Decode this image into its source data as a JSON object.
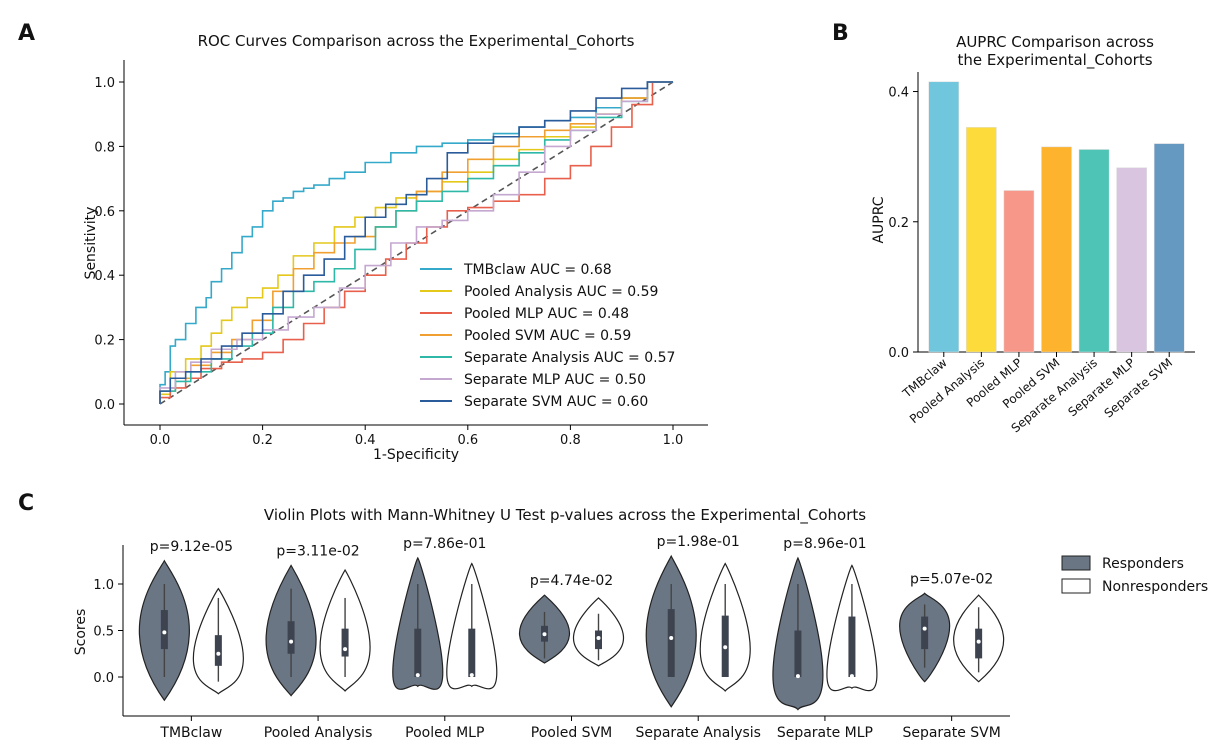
{
  "panels": {
    "a": "A",
    "b": "B",
    "c": "C"
  },
  "chart_data": [
    {
      "type": "line",
      "title": "ROC Curves Comparison across the Experimental_Cohorts",
      "xlabel": "1-Specificity",
      "ylabel": "Sensitivity",
      "xlim": [
        0,
        1
      ],
      "ylim": [
        0,
        1
      ],
      "xticks": [
        "0.0",
        "0.2",
        "0.4",
        "0.6",
        "0.8",
        "1.0"
      ],
      "yticks": [
        "0.0",
        "0.2",
        "0.4",
        "0.6",
        "0.8",
        "1.0"
      ],
      "legend_position": "lower-right",
      "diagonal": true,
      "series": [
        {
          "name": "TMBclaw AUC = 0.68",
          "color": "#35A9C9",
          "x": [
            0,
            0.01,
            0.02,
            0.03,
            0.05,
            0.07,
            0.09,
            0.1,
            0.12,
            0.14,
            0.16,
            0.18,
            0.2,
            0.22,
            0.24,
            0.26,
            0.28,
            0.3,
            0.33,
            0.36,
            0.4,
            0.45,
            0.5,
            0.55,
            0.6,
            0.65,
            0.7,
            0.75,
            0.8,
            0.85,
            0.9,
            0.95,
            1.0
          ],
          "y": [
            0,
            0.06,
            0.1,
            0.18,
            0.2,
            0.25,
            0.3,
            0.33,
            0.38,
            0.42,
            0.47,
            0.52,
            0.55,
            0.6,
            0.63,
            0.64,
            0.66,
            0.67,
            0.68,
            0.7,
            0.72,
            0.75,
            0.78,
            0.8,
            0.81,
            0.82,
            0.84,
            0.86,
            0.88,
            0.89,
            0.92,
            0.95,
            1.0
          ]
        },
        {
          "name": "Pooled Analysis AUC = 0.59",
          "color": "#E4C81A",
          "x": [
            0,
            0.02,
            0.05,
            0.08,
            0.1,
            0.12,
            0.14,
            0.17,
            0.2,
            0.23,
            0.26,
            0.3,
            0.34,
            0.38,
            0.42,
            0.46,
            0.5,
            0.55,
            0.6,
            0.65,
            0.7,
            0.75,
            0.8,
            0.85,
            0.9,
            0.95,
            1.0
          ],
          "y": [
            0,
            0.03,
            0.1,
            0.14,
            0.18,
            0.22,
            0.26,
            0.3,
            0.33,
            0.36,
            0.4,
            0.46,
            0.5,
            0.55,
            0.58,
            0.61,
            0.64,
            0.66,
            0.69,
            0.72,
            0.76,
            0.79,
            0.83,
            0.86,
            0.9,
            0.95,
            1.0
          ]
        },
        {
          "name": "Pooled MLP AUC = 0.48",
          "color": "#E8604C",
          "x": [
            0,
            0.02,
            0.05,
            0.08,
            0.12,
            0.16,
            0.2,
            0.24,
            0.28,
            0.32,
            0.36,
            0.4,
            0.44,
            0.48,
            0.52,
            0.56,
            0.6,
            0.65,
            0.7,
            0.75,
            0.8,
            0.84,
            0.88,
            0.92,
            0.96,
            1.0
          ],
          "y": [
            0,
            0.02,
            0.05,
            0.08,
            0.11,
            0.13,
            0.14,
            0.16,
            0.2,
            0.25,
            0.3,
            0.35,
            0.4,
            0.45,
            0.5,
            0.55,
            0.6,
            0.61,
            0.63,
            0.65,
            0.7,
            0.74,
            0.8,
            0.86,
            0.93,
            1.0
          ]
        },
        {
          "name": "Pooled SVM AUC = 0.59",
          "color": "#F0A030",
          "x": [
            0,
            0.03,
            0.06,
            0.1,
            0.14,
            0.18,
            0.22,
            0.26,
            0.3,
            0.34,
            0.38,
            0.42,
            0.46,
            0.5,
            0.55,
            0.6,
            0.65,
            0.7,
            0.75,
            0.8,
            0.85,
            0.9,
            0.95,
            1.0
          ],
          "y": [
            0,
            0.04,
            0.08,
            0.12,
            0.16,
            0.2,
            0.26,
            0.35,
            0.42,
            0.47,
            0.5,
            0.52,
            0.55,
            0.6,
            0.66,
            0.72,
            0.76,
            0.8,
            0.83,
            0.85,
            0.87,
            0.9,
            0.95,
            1.0
          ]
        },
        {
          "name": "Separate Analysis AUC = 0.57",
          "color": "#2EB8A8",
          "x": [
            0,
            0.03,
            0.06,
            0.1,
            0.14,
            0.18,
            0.22,
            0.26,
            0.3,
            0.34,
            0.38,
            0.42,
            0.46,
            0.5,
            0.55,
            0.6,
            0.65,
            0.7,
            0.75,
            0.8,
            0.85,
            0.9,
            0.95,
            1.0
          ],
          "y": [
            0,
            0.04,
            0.07,
            0.1,
            0.14,
            0.18,
            0.22,
            0.3,
            0.35,
            0.38,
            0.42,
            0.48,
            0.55,
            0.6,
            0.63,
            0.66,
            0.7,
            0.74,
            0.78,
            0.82,
            0.85,
            0.89,
            0.94,
            1.0
          ]
        },
        {
          "name": "Separate MLP AUC = 0.50",
          "color": "#C4A8D0",
          "x": [
            0,
            0.03,
            0.06,
            0.1,
            0.15,
            0.2,
            0.25,
            0.3,
            0.35,
            0.4,
            0.45,
            0.5,
            0.55,
            0.6,
            0.65,
            0.7,
            0.75,
            0.8,
            0.85,
            0.9,
            0.95,
            1.0
          ],
          "y": [
            0,
            0.05,
            0.1,
            0.13,
            0.17,
            0.2,
            0.23,
            0.27,
            0.3,
            0.36,
            0.43,
            0.5,
            0.55,
            0.57,
            0.6,
            0.65,
            0.72,
            0.8,
            0.85,
            0.9,
            0.94,
            1.0
          ]
        },
        {
          "name": "Separate SVM AUC = 0.60",
          "color": "#2A5B9A",
          "x": [
            0,
            0.02,
            0.05,
            0.08,
            0.12,
            0.16,
            0.2,
            0.24,
            0.28,
            0.32,
            0.36,
            0.4,
            0.44,
            0.48,
            0.52,
            0.56,
            0.6,
            0.65,
            0.7,
            0.75,
            0.8,
            0.85,
            0.9,
            0.95,
            1.0
          ],
          "y": [
            0,
            0.04,
            0.08,
            0.1,
            0.14,
            0.18,
            0.22,
            0.28,
            0.35,
            0.4,
            0.45,
            0.52,
            0.58,
            0.62,
            0.65,
            0.7,
            0.78,
            0.81,
            0.83,
            0.86,
            0.88,
            0.91,
            0.95,
            0.98,
            1.0
          ]
        }
      ]
    },
    {
      "type": "bar",
      "title": [
        "AUPRC Comparison across",
        "the Experimental_Cohorts"
      ],
      "ylabel": "AUPRC",
      "ylim": [
        0,
        0.43
      ],
      "yticks": [
        "0.0",
        "0.2",
        "0.4"
      ],
      "categories": [
        "TMBclaw",
        "Pooled Analysis",
        "Pooled MLP",
        "Pooled SVM",
        "Separate Analysis",
        "Separate MLP",
        "Separate SVM"
      ],
      "values": [
        0.415,
        0.345,
        0.248,
        0.315,
        0.311,
        0.283,
        0.32
      ],
      "colors": [
        "#70C6DD",
        "#FDDB3A",
        "#F79789",
        "#FDB32E",
        "#4DC4B6",
        "#D9C5DF",
        "#6699C2"
      ]
    },
    {
      "type": "violin",
      "title": "Violin Plots with Mann-Whitney U Test p-values across the Experimental_Cohorts",
      "ylabel": "Scores",
      "ylim": [
        -0.4,
        1.35
      ],
      "yticks": [
        "0.0",
        "0.5",
        "1.0"
      ],
      "legend": [
        "Responders",
        "Nonresponders"
      ],
      "legend_position": "right",
      "responder_color": "#6B7685",
      "categories": [
        "TMBclaw",
        "Pooled Analysis",
        "Pooled MLP",
        "Pooled SVM",
        "Separate Analysis",
        "Separate MLP",
        "Separate SVM"
      ],
      "pvalues": [
        "p=9.12e-05",
        "p=3.11e-02",
        "p=7.86e-01",
        "p=4.74e-02",
        "p=1.98e-01",
        "p=8.96e-01",
        "p=5.07e-02"
      ],
      "groups": [
        {
          "resp": {
            "min": -0.25,
            "max": 1.25,
            "q1": 0.3,
            "med": 0.48,
            "q3": 0.72,
            "wlo": 0.0,
            "whi": 1.0,
            "mode": 0.5
          },
          "non": {
            "min": -0.18,
            "max": 0.95,
            "q1": 0.12,
            "med": 0.25,
            "q3": 0.45,
            "wlo": -0.05,
            "whi": 0.85,
            "mode": 0.2
          }
        },
        {
          "resp": {
            "min": -0.2,
            "max": 1.2,
            "q1": 0.25,
            "med": 0.38,
            "q3": 0.6,
            "wlo": 0.0,
            "whi": 0.95,
            "mode": 0.4
          },
          "non": {
            "min": -0.15,
            "max": 1.15,
            "q1": 0.22,
            "med": 0.3,
            "q3": 0.52,
            "wlo": 0.0,
            "whi": 0.85,
            "mode": 0.32
          }
        },
        {
          "resp": {
            "min": -0.1,
            "max": 1.28,
            "q1": 0.0,
            "med": 0.02,
            "q3": 0.52,
            "wlo": 0.0,
            "whi": 1.0,
            "mode": 0.05
          },
          "non": {
            "min": -0.1,
            "max": 1.22,
            "q1": 0.0,
            "med": 0.02,
            "q3": 0.52,
            "wlo": 0.0,
            "whi": 1.0,
            "mode": 0.05
          }
        },
        {
          "resp": {
            "min": 0.15,
            "max": 0.88,
            "q1": 0.38,
            "med": 0.46,
            "q3": 0.55,
            "wlo": 0.2,
            "whi": 0.7,
            "mode": 0.47
          },
          "non": {
            "min": 0.12,
            "max": 0.85,
            "q1": 0.3,
            "med": 0.42,
            "q3": 0.5,
            "wlo": 0.18,
            "whi": 0.68,
            "mode": 0.42
          }
        },
        {
          "resp": {
            "min": -0.32,
            "max": 1.3,
            "q1": 0.0,
            "med": 0.42,
            "q3": 0.73,
            "wlo": 0.0,
            "whi": 1.0,
            "mode": 0.45
          },
          "non": {
            "min": -0.15,
            "max": 1.22,
            "q1": 0.0,
            "med": 0.32,
            "q3": 0.66,
            "wlo": 0.0,
            "whi": 1.0,
            "mode": 0.3
          }
        },
        {
          "resp": {
            "min": -0.35,
            "max": 1.28,
            "q1": 0.0,
            "med": 0.01,
            "q3": 0.5,
            "wlo": 0.0,
            "whi": 1.0,
            "mode": 0.02
          },
          "non": {
            "min": -0.12,
            "max": 1.2,
            "q1": 0.0,
            "med": 0.01,
            "q3": 0.65,
            "wlo": 0.0,
            "whi": 1.0,
            "mode": 0.03
          }
        },
        {
          "resp": {
            "min": -0.05,
            "max": 0.9,
            "q1": 0.3,
            "med": 0.52,
            "q3": 0.65,
            "wlo": 0.1,
            "whi": 0.78,
            "mode": 0.55
          },
          "non": {
            "min": -0.05,
            "max": 0.88,
            "q1": 0.2,
            "med": 0.38,
            "q3": 0.52,
            "wlo": 0.05,
            "whi": 0.75,
            "mode": 0.4
          }
        }
      ]
    }
  ]
}
